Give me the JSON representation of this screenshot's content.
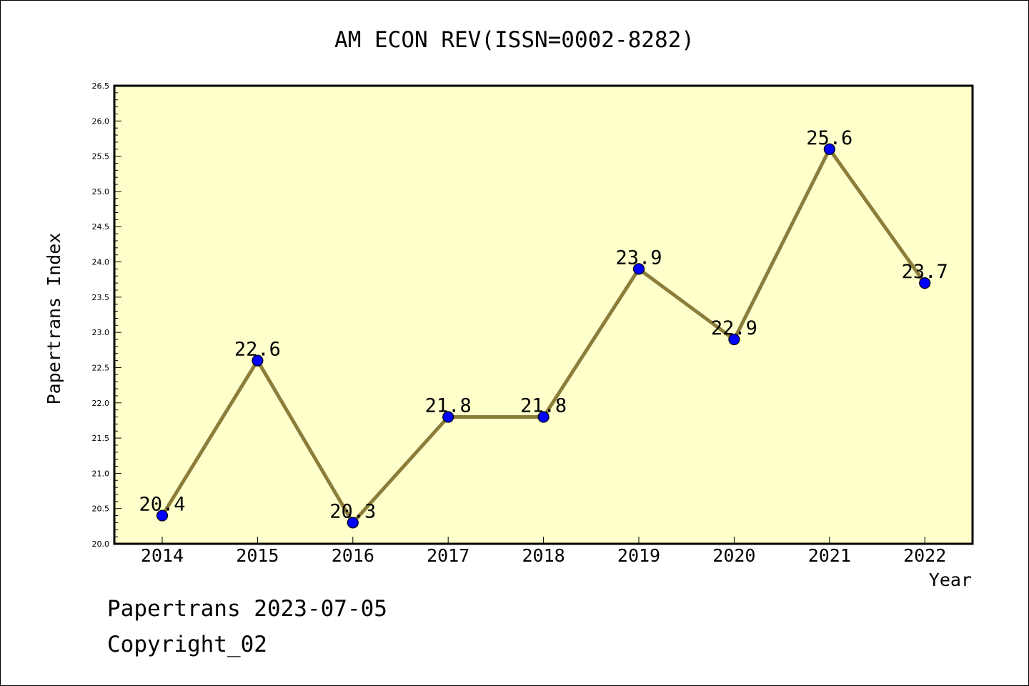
{
  "chart_data": {
    "type": "line",
    "title": "AM ECON REV(ISSN=0002-8282)",
    "xlabel": "Year",
    "ylabel": "Papertrans Index",
    "ylim": [
      20.0,
      26.5
    ],
    "yticks": [
      "20.0",
      "20.5",
      "21.0",
      "21.5",
      "22.0",
      "22.5",
      "23.0",
      "23.5",
      "24.0",
      "24.5",
      "25.0",
      "25.5",
      "26.0",
      "26.5"
    ],
    "categories": [
      "2014",
      "2015",
      "2016",
      "2017",
      "2018",
      "2019",
      "2020",
      "2021",
      "2022"
    ],
    "values": [
      20.4,
      22.6,
      20.3,
      21.8,
      21.8,
      23.9,
      22.9,
      25.6,
      23.7
    ],
    "point_labels": [
      "20.4",
      "22.6",
      "20.3",
      "21.8",
      "21.8",
      "23.9",
      "22.9",
      "25.6",
      "23.7"
    ],
    "grid": false,
    "colors": {
      "plot_background": "#ffffcc",
      "line": "#8b7d3a",
      "marker": "#0000ff"
    }
  },
  "footer": {
    "line1": "Papertrans 2023-07-05",
    "line2": "Copyright_02"
  }
}
